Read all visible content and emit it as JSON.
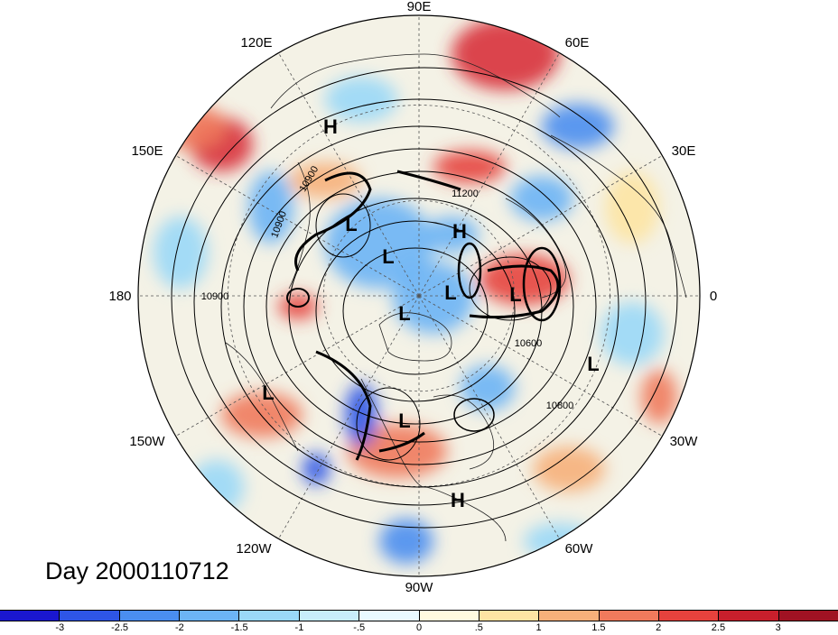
{
  "map": {
    "projection": "north polar stereographic",
    "longitude_labels": [
      "90E",
      "60E",
      "30E",
      "0",
      "30W",
      "60W",
      "90W",
      "120W",
      "150W",
      "180",
      "150E",
      "120E"
    ],
    "contour_labels": [
      "10900",
      "10900",
      "10900",
      "11200",
      "10600",
      "10800"
    ],
    "pressure_centers": [
      {
        "type": "H",
        "label": "H"
      },
      {
        "type": "H",
        "label": "H"
      },
      {
        "type": "H",
        "label": "H"
      },
      {
        "type": "L",
        "label": "L"
      },
      {
        "type": "L",
        "label": "L"
      },
      {
        "type": "L",
        "label": "L"
      },
      {
        "type": "L",
        "label": "L"
      },
      {
        "type": "L",
        "label": "L"
      },
      {
        "type": "L",
        "label": "L"
      },
      {
        "type": "L",
        "label": "L"
      },
      {
        "type": "L",
        "label": "L"
      }
    ],
    "colors": {
      "positive": "#e8433a",
      "negative": "#4f9fe8",
      "neutral": "#f4f2e6",
      "contour": "#000000",
      "grid": "#555555"
    }
  },
  "title": {
    "day_label": "Day 2000110712"
  },
  "colorbar": {
    "tick_labels": [
      "-3",
      "-2.5",
      "-2",
      "-1.5",
      "-1",
      "-.5",
      "0",
      ".5",
      "1",
      "1.5",
      "2",
      "2.5",
      "3"
    ],
    "colors": [
      "#1a17d0",
      "#2e55e6",
      "#4a8ef0",
      "#6cb4f5",
      "#9ad8f7",
      "#c8eefb",
      "#eafaff",
      "#fffbe0",
      "#fde4a3",
      "#f6b07a",
      "#f07a5c",
      "#e6423d",
      "#c81f2c",
      "#a01223"
    ]
  }
}
